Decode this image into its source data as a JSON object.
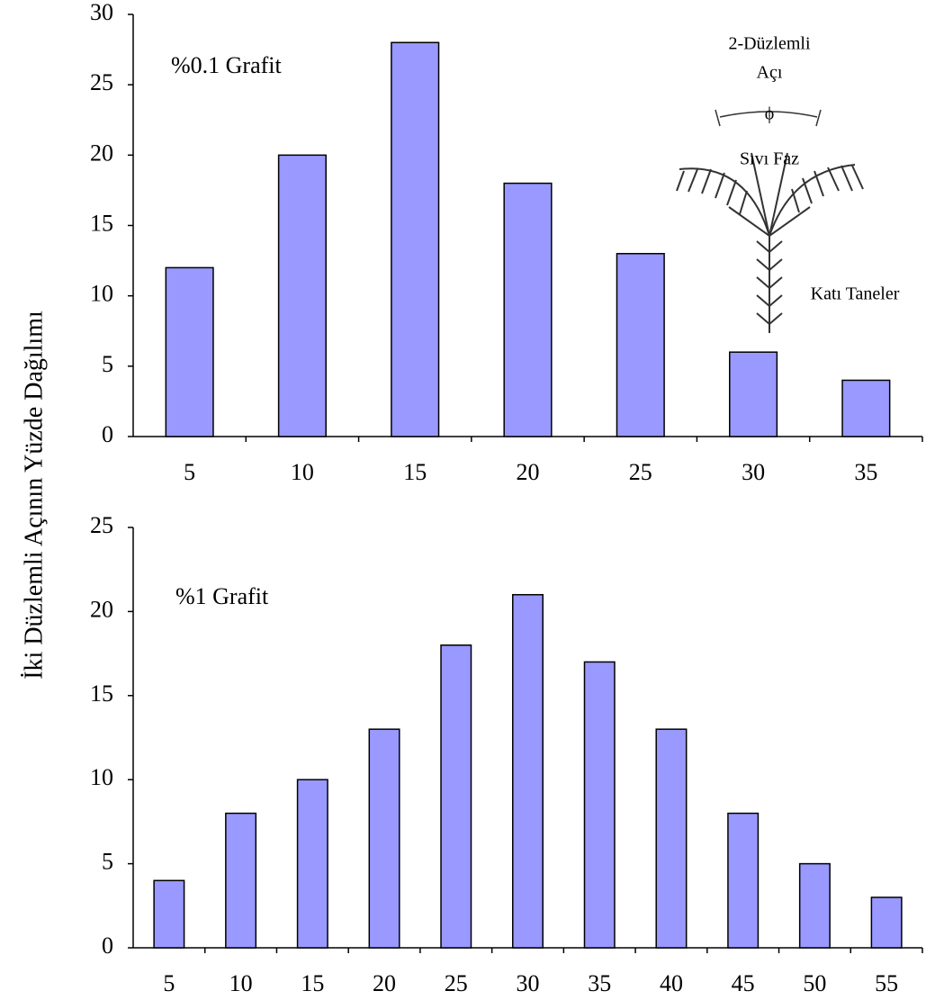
{
  "chart_data": [
    {
      "type": "bar",
      "ylabel": "İki Düzlemli Açının Yüzde Dağılımı",
      "annotation": "%0.1 Grafit",
      "inset_labels": [
        "2-Düzlemli",
        "Açı",
        "ϕ",
        "Sıvı Faz",
        "Katı Taneler"
      ],
      "categories": [
        "5",
        "10",
        "15",
        "20",
        "25",
        "30",
        "35"
      ],
      "values": [
        12,
        20,
        28,
        18,
        13,
        6,
        4
      ],
      "color": "#9999ff",
      "ylim": [
        0,
        30
      ],
      "yticks": [
        0,
        5,
        10,
        15,
        20,
        25,
        30
      ]
    },
    {
      "type": "bar",
      "annotation": "%1 Grafit",
      "categories": [
        "5",
        "10",
        "15",
        "20",
        "25",
        "30",
        "35",
        "40",
        "45",
        "50",
        "55"
      ],
      "values": [
        4,
        8,
        10,
        13,
        18,
        21,
        17,
        13,
        8,
        5,
        3
      ],
      "color": "#9999ff",
      "ylim": [
        0,
        25
      ],
      "yticks": [
        0,
        5,
        10,
        15,
        20,
        25
      ]
    }
  ]
}
